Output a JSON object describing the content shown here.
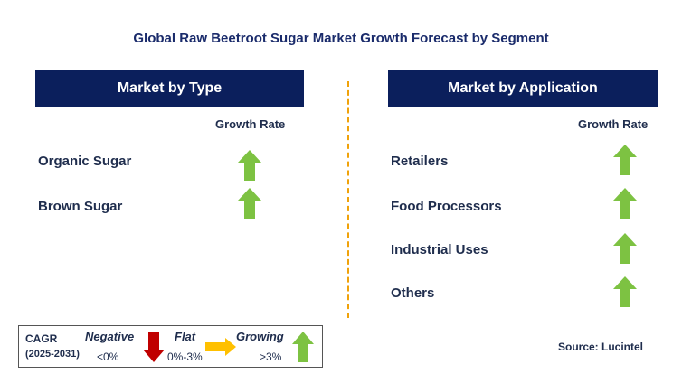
{
  "title": "Global Raw Beetroot Sugar Market Growth Forecast by Segment",
  "left_panel": {
    "header": "Market by Type",
    "growth_label": "Growth Rate",
    "items": [
      "Organic Sugar",
      "Brown Sugar"
    ]
  },
  "right_panel": {
    "header": "Market by Application",
    "growth_label": "Growth Rate",
    "items": [
      "Retailers",
      "Food Processors",
      "Industrial Uses",
      "Others"
    ]
  },
  "legend": {
    "cagr": "CAGR",
    "years": "(2025-2031)",
    "negative": "Negative",
    "negative_value": "<0%",
    "flat": "Flat",
    "flat_value": "0%-3%",
    "growing": "Growing",
    "growing_value": ">3%"
  },
  "source": "Source: Lucintel",
  "colors": {
    "header_bg": "#0b1f5c",
    "growing_arrow": "#7dc242",
    "negative_arrow": "#c00000",
    "flat_arrow": "#ffc000",
    "divider": "#f0a20a"
  }
}
